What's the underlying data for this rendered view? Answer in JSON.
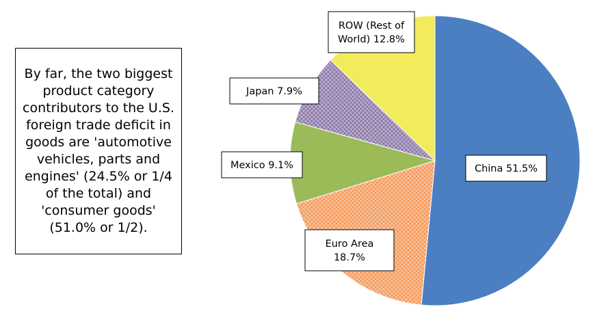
{
  "note": {
    "text": "By far, the two biggest product category contributors to the U.S. foreign trade deficit in goods are 'automotive vehicles, parts and engines' (24.5% or 1/4 of the total) and 'consumer goods' (51.0% or 1/2)."
  },
  "chart_data": {
    "type": "pie",
    "title": "",
    "start_angle_deg": 0,
    "direction": "clockwise",
    "slices": [
      {
        "label": "China",
        "value": 51.5,
        "display": [
          "China 51.5%"
        ],
        "color": "#4b7fc1",
        "pattern": "solid"
      },
      {
        "label": "Euro Area",
        "value": 18.7,
        "display": [
          "Euro Area",
          "18.7%"
        ],
        "color": "#f59a5c",
        "pattern": "grid"
      },
      {
        "label": "Mexico",
        "value": 9.1,
        "display": [
          "Mexico 9.1%"
        ],
        "color": "#9bbb59",
        "pattern": "solid"
      },
      {
        "label": "Japan",
        "value": 7.9,
        "display": [
          "Japan 7.9%"
        ],
        "color": "#8c7aa8",
        "pattern": "dotted"
      },
      {
        "label": "ROW (Rest of World)",
        "value": 12.8,
        "display": [
          "ROW (Rest of",
          "World) 12.8%"
        ],
        "color": "#f2ec5c",
        "pattern": "solid"
      }
    ]
  }
}
